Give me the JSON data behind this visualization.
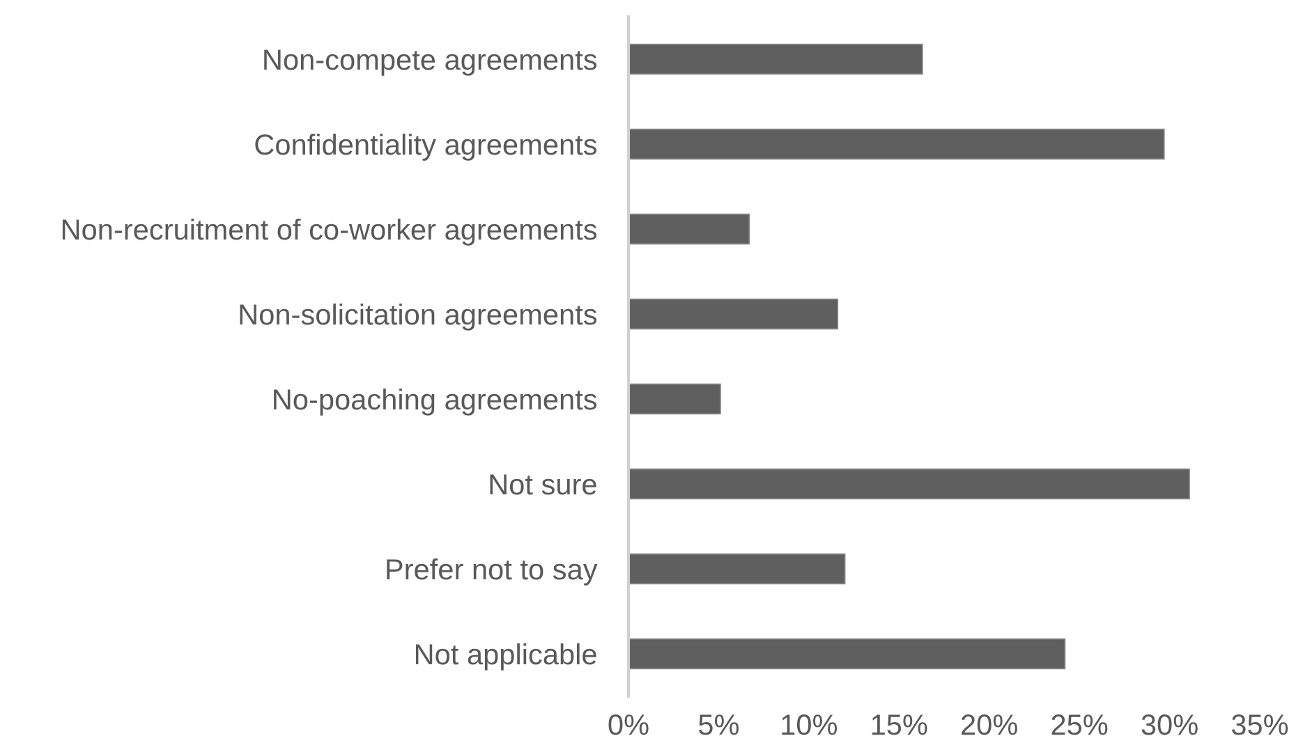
{
  "chart_data": {
    "type": "bar",
    "orientation": "horizontal",
    "categories": [
      "Non-compete agreements",
      "Confidentiality agreements",
      "Non-recruitment of co-worker agreements",
      "Non-solicitation agreements",
      "No-poaching agreements",
      "Not sure",
      "Prefer not to say",
      "Not applicable"
    ],
    "values": [
      16.3,
      29.7,
      6.7,
      11.6,
      5.1,
      31.1,
      12.0,
      24.2
    ],
    "color": "#5f5f5f",
    "xlim": [
      0,
      35
    ],
    "xticks": [
      {
        "value": 0,
        "label": "0%"
      },
      {
        "value": 5,
        "label": "5%"
      },
      {
        "value": 10,
        "label": "10%"
      },
      {
        "value": 15,
        "label": "15%"
      },
      {
        "value": 20,
        "label": "20%"
      },
      {
        "value": 25,
        "label": "25%"
      },
      {
        "value": 30,
        "label": "30%"
      },
      {
        "value": 35,
        "label": "35%"
      }
    ],
    "grid": false,
    "legend": false
  }
}
